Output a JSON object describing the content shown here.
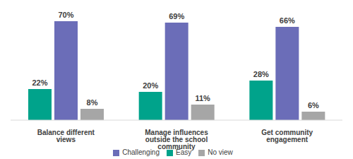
{
  "chart_data": {
    "type": "bar",
    "categories": [
      "Balance different views",
      "Manage influences outside the school community",
      "Get community engagement"
    ],
    "series": [
      {
        "name": "Easy",
        "color": "#00a38b",
        "values": [
          22,
          20,
          28
        ],
        "value_labels": [
          "22%",
          "20%",
          "28%"
        ]
      },
      {
        "name": "Challenging",
        "color": "#6b6db8",
        "values": [
          70,
          69,
          66
        ],
        "value_labels": [
          "70%",
          "69%",
          "66%"
        ]
      },
      {
        "name": "No view",
        "color": "#a6a6a6",
        "values": [
          8,
          11,
          6
        ],
        "value_labels": [
          "8%",
          "11%",
          "6%"
        ]
      }
    ],
    "ylim": [
      0,
      70
    ],
    "data_labels": true,
    "tick_labels": "x",
    "legend": "bottom"
  }
}
